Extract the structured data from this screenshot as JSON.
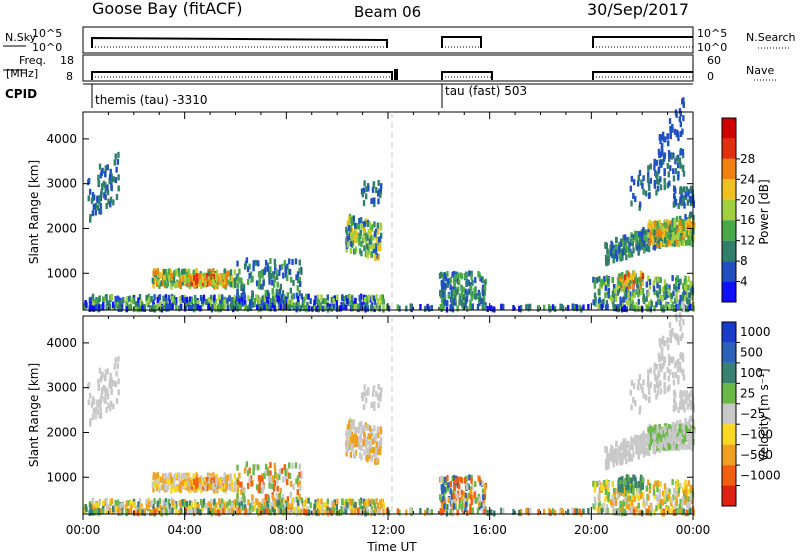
{
  "header": {
    "station": "Goose Bay (fitACF)",
    "beam": "Beam 06",
    "date": "30/Sep/2017"
  },
  "top_panels": {
    "nsky_label": "N.Sky",
    "nsky_ticks": [
      "10^5",
      "10^0"
    ],
    "nsearch_label": "N.Search",
    "nsearch_ticks": [
      "10^5",
      "10^0"
    ],
    "freq_label_top": "Freq.",
    "freq_label_bottom": "[MHz]",
    "freq_ticks": [
      "18",
      "8"
    ],
    "nave_label": "Nave",
    "nave_ticks": [
      "60",
      "0"
    ],
    "cpid_label": "CPID",
    "cpid_segments": [
      {
        "label": "themis (tau) -3310",
        "start_hour": 0.0
      },
      {
        "label": "tau (fast) 503",
        "start_hour": 14.0
      }
    ]
  },
  "chart_data": [
    {
      "type": "heatmap",
      "name": "power",
      "xlabel": "Time UT",
      "ylabel": "Slant Range [km]",
      "x_range_hours": [
        0,
        24
      ],
      "ylim": [
        180,
        4600
      ],
      "y_ticks": [
        1000,
        2000,
        3000,
        4000
      ],
      "x_ticks": [
        "00:00",
        "04:00",
        "08:00",
        "12:00",
        "16:00",
        "20:00",
        "00:00"
      ],
      "colorbar": {
        "label": "Power [dB]",
        "ticks": [
          "4",
          "8",
          "12",
          "16",
          "20",
          "24",
          "28"
        ],
        "colors": [
          "#1010ff",
          "#2050c0",
          "#2f7f6a",
          "#48a848",
          "#a0d040",
          "#f0c020",
          "#f08010",
          "#e03010",
          "#d00000"
        ]
      }
    },
    {
      "type": "heatmap",
      "name": "velocity",
      "xlabel": "Time UT",
      "ylabel": "Slant Range [km]",
      "x_range_hours": [
        0,
        24
      ],
      "ylim": [
        180,
        4600
      ],
      "y_ticks": [
        1000,
        2000,
        3000,
        4000
      ],
      "x_ticks": [
        "00:00",
        "04:00",
        "08:00",
        "12:00",
        "16:00",
        "20:00",
        "00:00"
      ],
      "colorbar": {
        "label": "Velocity [m s⁻¹]",
        "ticks": [
          "1000",
          "500",
          "100",
          "25",
          "−25",
          "−100",
          "−500",
          "−1000"
        ],
        "colors": [
          "#1a3cc8",
          "#2c62b8",
          "#3a8070",
          "#6ab848",
          "#c8c8c8",
          "#f8d820",
          "#f0a020",
          "#f06010",
          "#e02010"
        ]
      }
    }
  ],
  "scatter_regions": [
    {
      "t0": 0.1,
      "t1": 1.4,
      "r0": 2000,
      "r1": 3100,
      "n": 70,
      "slope": 700,
      "pw": [
        1,
        2
      ],
      "vel": [
        4,
        4
      ]
    },
    {
      "t0": 2.7,
      "t1": 6.0,
      "r0": 700,
      "r1": 1050,
      "n": 200,
      "slope": 0,
      "pw": [
        2,
        3,
        4,
        5,
        6
      ],
      "vel": [
        4,
        5,
        6
      ]
    },
    {
      "t0": 4.1,
      "t1": 5.6,
      "r0": 750,
      "r1": 950,
      "n": 120,
      "slope": 0,
      "pw": [
        4,
        5,
        6,
        7
      ],
      "vel": [
        4,
        5,
        6,
        7
      ]
    },
    {
      "t0": 6.0,
      "t1": 8.6,
      "r0": 400,
      "r1": 1300,
      "n": 140,
      "slope": 0,
      "pw": [
        1,
        2,
        3
      ],
      "vel": [
        3,
        4,
        6,
        7
      ]
    },
    {
      "t0": 0.0,
      "t1": 11.8,
      "r0": 190,
      "r1": 480,
      "n": 450,
      "slope": 0,
      "pw": [
        0,
        1,
        2,
        3,
        4
      ],
      "vel": [
        2,
        3,
        4,
        5,
        6
      ]
    },
    {
      "t0": 10.3,
      "t1": 11.7,
      "r0": 1500,
      "r1": 2300,
      "n": 140,
      "slope": -200,
      "pw": [
        1,
        2,
        3,
        4,
        5
      ],
      "vel": [
        4,
        4,
        6
      ]
    },
    {
      "t0": 10.9,
      "t1": 11.7,
      "r0": 2500,
      "r1": 3050,
      "n": 25,
      "slope": 0,
      "pw": [
        1,
        2
      ],
      "vel": [
        4
      ]
    },
    {
      "t0": 14.0,
      "t1": 15.8,
      "r0": 200,
      "r1": 1000,
      "n": 160,
      "slope": 0,
      "pw": [
        1,
        2,
        3
      ],
      "vel": [
        1,
        3,
        4,
        6,
        7
      ]
    },
    {
      "t0": 20.0,
      "t1": 24.0,
      "r0": 190,
      "r1": 900,
      "n": 260,
      "slope": 0,
      "pw": [
        1,
        2,
        3,
        4
      ],
      "vel": [
        3,
        4,
        5,
        6
      ]
    },
    {
      "t0": 20.5,
      "t1": 24.0,
      "r0": 1200,
      "r1": 1700,
      "n": 230,
      "slope": 650,
      "pw": [
        1,
        2,
        3
      ],
      "vel": [
        4
      ]
    },
    {
      "t0": 22.2,
      "t1": 24.0,
      "r0": 1650,
      "r1": 2150,
      "n": 230,
      "slope": 0,
      "pw": [
        2,
        3,
        4,
        5,
        6
      ],
      "vel": [
        4,
        4,
        3
      ]
    },
    {
      "t0": 21.5,
      "t1": 23.6,
      "r0": 2300,
      "r1": 3100,
      "n": 80,
      "slope": 900,
      "pw": [
        1,
        2
      ],
      "vel": [
        4
      ]
    },
    {
      "t0": 22.6,
      "t1": 23.6,
      "r0": 3300,
      "r1": 4000,
      "n": 45,
      "slope": 900,
      "pw": [
        1
      ],
      "vel": [
        4
      ]
    },
    {
      "t0": 23.2,
      "t1": 24.0,
      "r0": 2500,
      "r1": 2900,
      "n": 50,
      "slope": 0,
      "pw": [
        1,
        2
      ],
      "vel": [
        4
      ]
    },
    {
      "t0": 21.0,
      "t1": 22.0,
      "r0": 700,
      "r1": 1000,
      "n": 60,
      "slope": 0,
      "pw": [
        3,
        5,
        6,
        7
      ],
      "vel": [
        2,
        3
      ]
    },
    {
      "t0": 0.0,
      "t1": 24.0,
      "r0": 190,
      "r1": 260,
      "n": 200,
      "slope": 0,
      "pw": [
        0,
        1,
        2,
        3
      ],
      "vel": [
        2,
        3,
        4,
        6,
        7
      ]
    }
  ]
}
